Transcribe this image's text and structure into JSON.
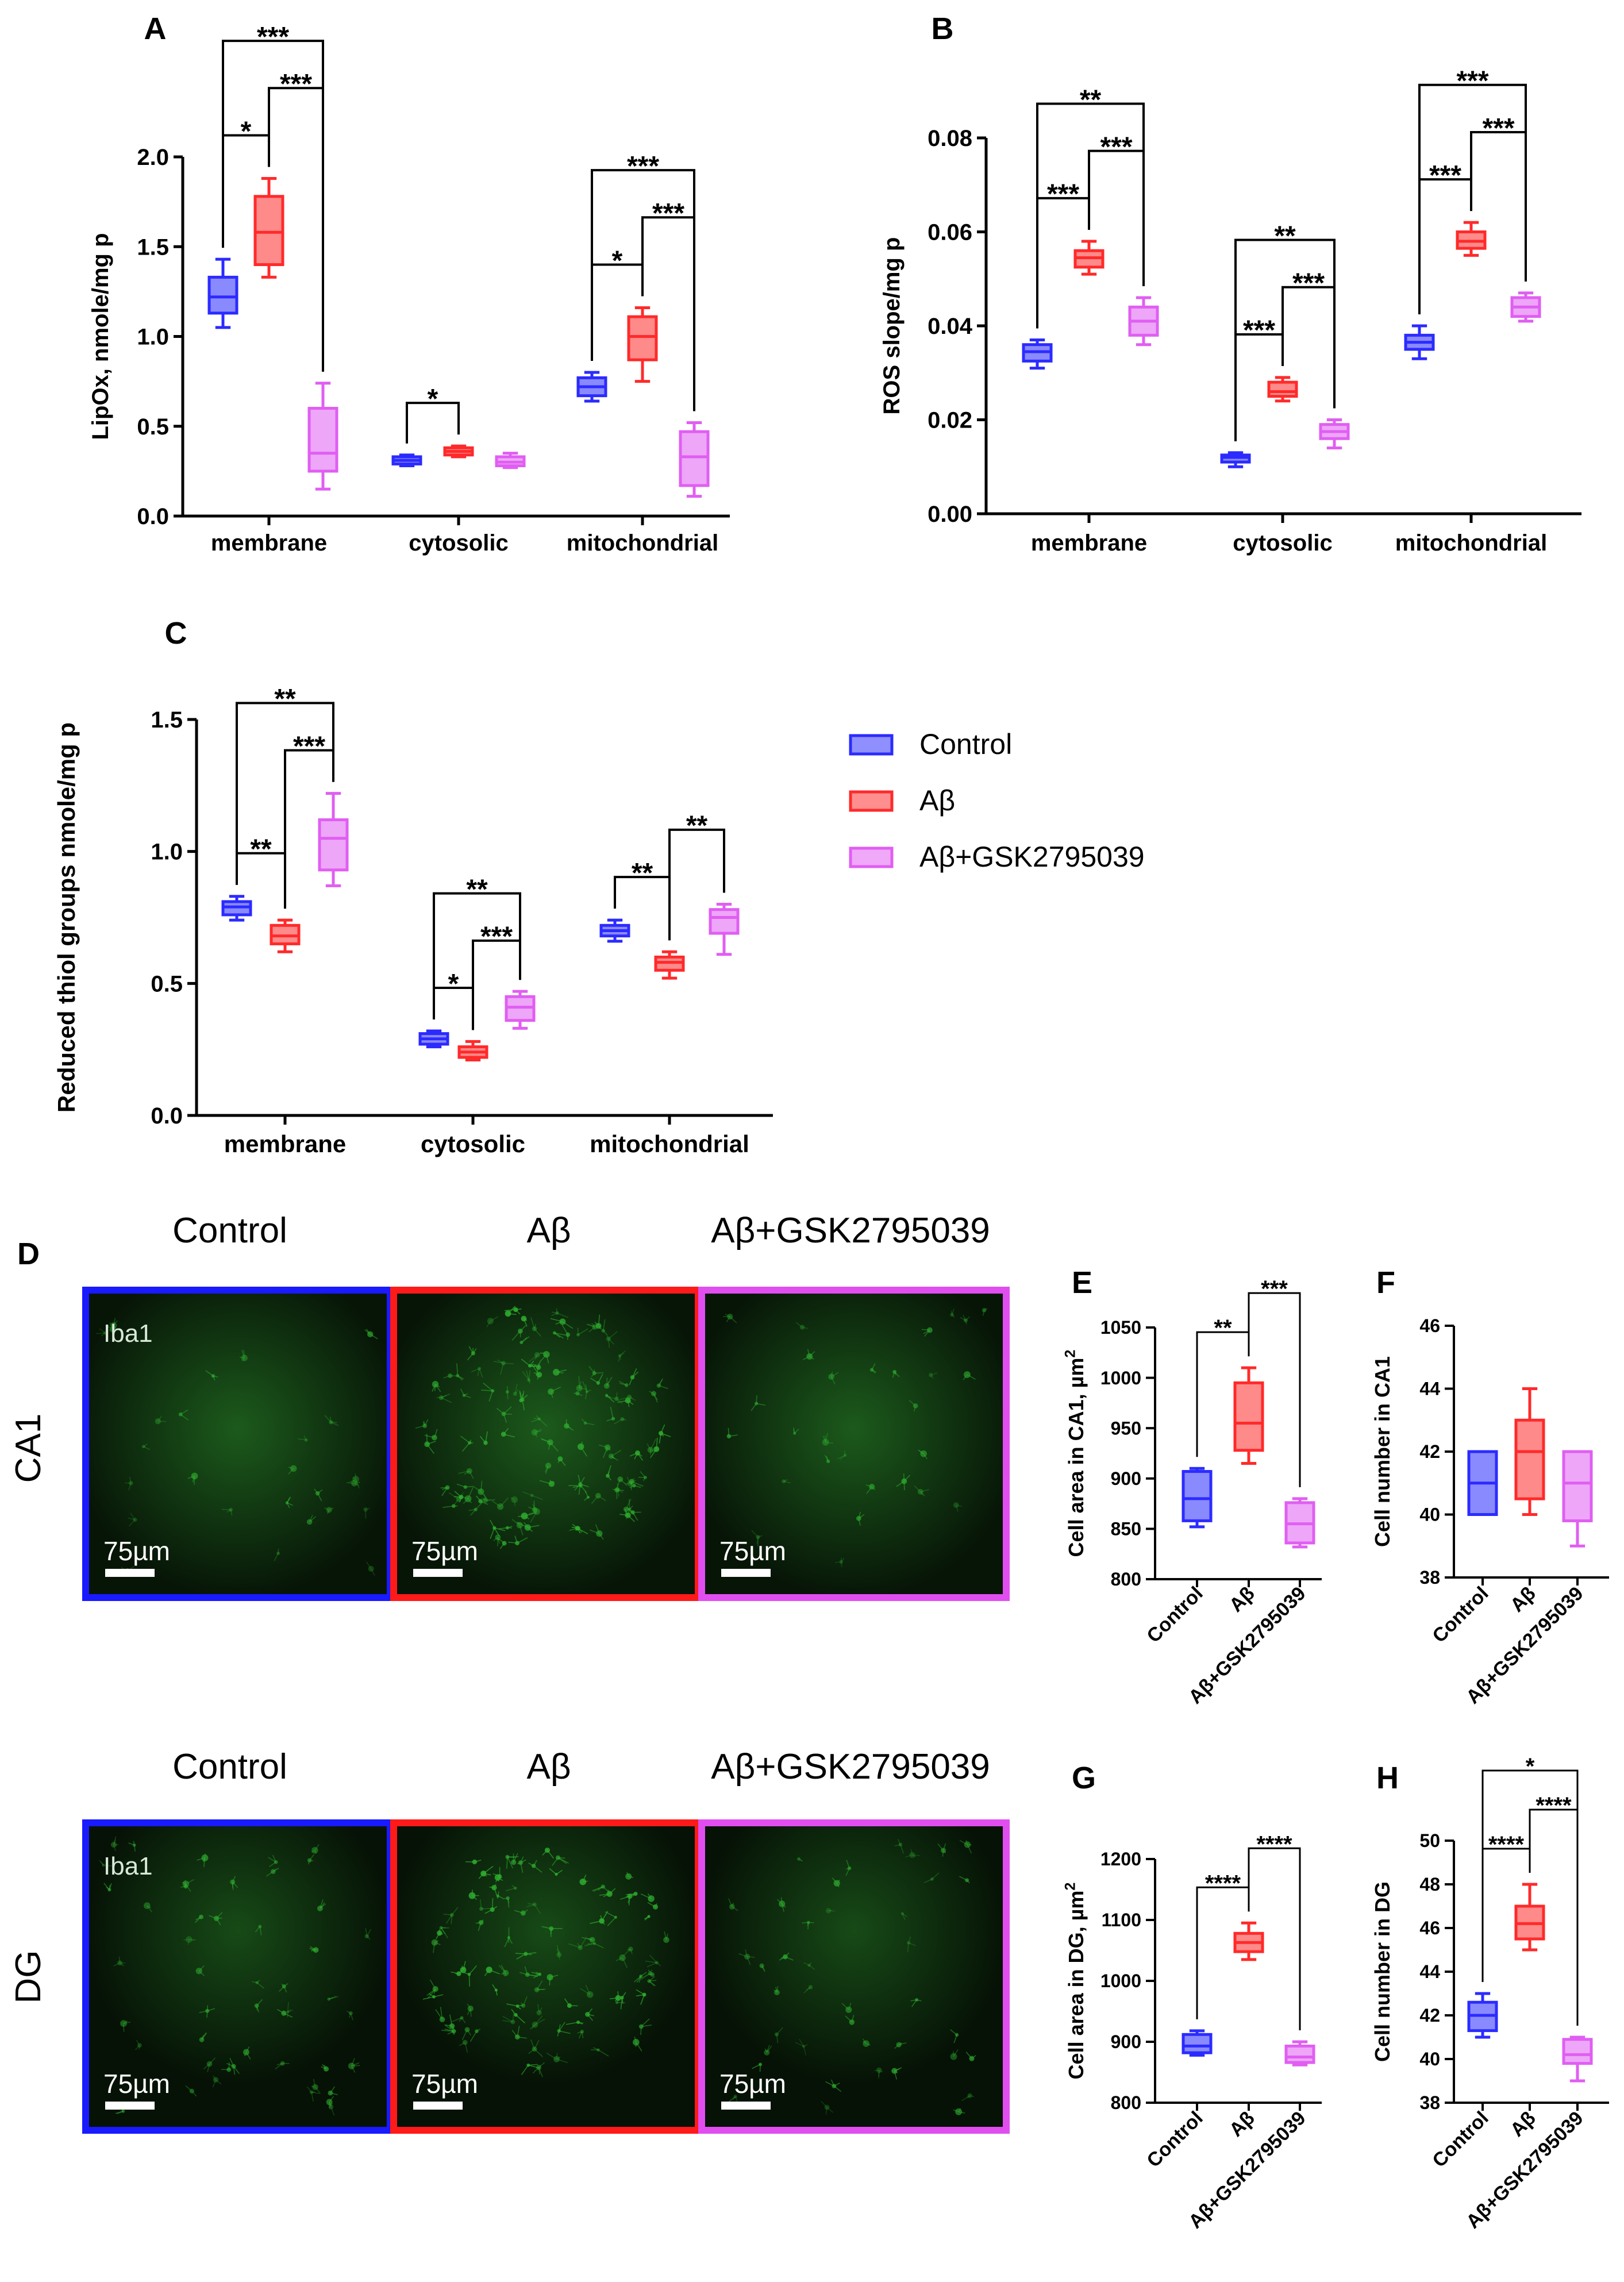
{
  "colors": {
    "control": "#2b2bff",
    "abeta": "#ff2a2a",
    "gsk": "#e05ef2",
    "imgbg": "#050f05",
    "cell": "#2fae2f"
  },
  "legend": {
    "items": [
      "Control",
      "Aβ",
      "Aβ+GSK2795039"
    ]
  },
  "microscopy": {
    "panel_label": "D",
    "col_labels": [
      "Control",
      "Aβ",
      "Aβ+GSK2795039"
    ],
    "row_labels": [
      "CA1",
      "DG"
    ],
    "stain_label": "Iba1",
    "scale_bar": "75µm"
  },
  "chart_data": [
    {
      "id": "A",
      "type": "box",
      "panel_label": "A",
      "ylabel": "LipOx, nmole/mg p",
      "categories": [
        "membrane",
        "cytosolic",
        "mitochondrial"
      ],
      "series_names": [
        "Control",
        "Aβ",
        "Aβ+GSK2795039"
      ],
      "ylim": [
        0,
        2.0
      ],
      "yticks": [
        0.0,
        0.5,
        1.0,
        1.5,
        2.0
      ],
      "ytick_labels": [
        "0.0",
        "0.5",
        "1.0",
        "1.5",
        "2.0"
      ],
      "boxes": [
        [
          [
            1.05,
            1.13,
            1.22,
            1.33,
            1.43
          ],
          [
            1.33,
            1.4,
            1.58,
            1.78,
            1.88
          ],
          [
            0.15,
            0.25,
            0.35,
            0.6,
            0.74
          ]
        ],
        [
          [
            0.28,
            0.29,
            0.31,
            0.33,
            0.34
          ],
          [
            0.33,
            0.34,
            0.36,
            0.38,
            0.39
          ],
          [
            0.27,
            0.28,
            0.3,
            0.33,
            0.35
          ]
        ],
        [
          [
            0.64,
            0.67,
            0.72,
            0.77,
            0.8
          ],
          [
            0.75,
            0.87,
            1.0,
            1.11,
            1.16
          ],
          [
            0.11,
            0.17,
            0.33,
            0.47,
            0.52
          ]
        ]
      ],
      "brackets": [
        {
          "group": 0,
          "from": 0,
          "to": 1,
          "label": "*"
        },
        {
          "group": 0,
          "from": 1,
          "to": 2,
          "label": "***"
        },
        {
          "group": 0,
          "from": 0,
          "to": 2,
          "label": "***"
        },
        {
          "group": 1,
          "from": 0,
          "to": 1,
          "label": "*"
        },
        {
          "group": 2,
          "from": 0,
          "to": 1,
          "label": "*"
        },
        {
          "group": 2,
          "from": 1,
          "to": 2,
          "label": "***"
        },
        {
          "group": 2,
          "from": 0,
          "to": 2,
          "label": "***"
        }
      ]
    },
    {
      "id": "B",
      "type": "box",
      "panel_label": "B",
      "ylabel": "ROS slope/mg p",
      "categories": [
        "membrane",
        "cytosolic",
        "mitochondrial"
      ],
      "series_names": [
        "Control",
        "Aβ",
        "Aβ+GSK2795039"
      ],
      "ylim": [
        0,
        0.08
      ],
      "yticks": [
        0,
        0.02,
        0.04,
        0.06,
        0.08
      ],
      "ytick_labels": [
        "0.00",
        "0.02",
        "0.04",
        "0.06",
        "0.08"
      ],
      "boxes": [
        [
          [
            0.031,
            0.0325,
            0.0345,
            0.036,
            0.037
          ],
          [
            0.051,
            0.0525,
            0.0545,
            0.056,
            0.058
          ],
          [
            0.036,
            0.038,
            0.041,
            0.044,
            0.046
          ]
        ],
        [
          [
            0.01,
            0.011,
            0.012,
            0.0125,
            0.013
          ],
          [
            0.024,
            0.025,
            0.026,
            0.028,
            0.029
          ],
          [
            0.014,
            0.016,
            0.0175,
            0.019,
            0.02
          ]
        ],
        [
          [
            0.033,
            0.035,
            0.0365,
            0.038,
            0.04
          ],
          [
            0.055,
            0.0565,
            0.058,
            0.06,
            0.062
          ],
          [
            0.041,
            0.042,
            0.044,
            0.046,
            0.047
          ]
        ]
      ],
      "brackets": [
        {
          "group": 0,
          "from": 0,
          "to": 1,
          "label": "***"
        },
        {
          "group": 0,
          "from": 1,
          "to": 2,
          "label": "***"
        },
        {
          "group": 0,
          "from": 0,
          "to": 2,
          "label": "**"
        },
        {
          "group": 1,
          "from": 0,
          "to": 1,
          "label": "***"
        },
        {
          "group": 1,
          "from": 1,
          "to": 2,
          "label": "***"
        },
        {
          "group": 1,
          "from": 0,
          "to": 2,
          "label": "**"
        },
        {
          "group": 2,
          "from": 0,
          "to": 1,
          "label": "***"
        },
        {
          "group": 2,
          "from": 1,
          "to": 2,
          "label": "***"
        },
        {
          "group": 2,
          "from": 0,
          "to": 2,
          "label": "***"
        }
      ]
    },
    {
      "id": "C",
      "type": "box",
      "panel_label": "C",
      "ylabel": "Reduced thiol groups nmole/mg p",
      "categories": [
        "membrane",
        "cytosolic",
        "mitochondrial"
      ],
      "series_names": [
        "Control",
        "Aβ",
        "Aβ+GSK2795039"
      ],
      "ylim": [
        0,
        1.5
      ],
      "yticks": [
        0.0,
        0.5,
        1.0,
        1.5
      ],
      "ytick_labels": [
        "0.0",
        "0.5",
        "1.0",
        "1.5"
      ],
      "boxes": [
        [
          [
            0.74,
            0.76,
            0.79,
            0.81,
            0.83
          ],
          [
            0.62,
            0.65,
            0.68,
            0.72,
            0.74
          ],
          [
            0.87,
            0.93,
            1.05,
            1.12,
            1.22
          ]
        ],
        [
          [
            0.26,
            0.27,
            0.29,
            0.31,
            0.32
          ],
          [
            0.21,
            0.22,
            0.24,
            0.26,
            0.28
          ],
          [
            0.33,
            0.36,
            0.41,
            0.45,
            0.47
          ]
        ],
        [
          [
            0.66,
            0.68,
            0.7,
            0.72,
            0.74
          ],
          [
            0.52,
            0.55,
            0.58,
            0.6,
            0.62
          ],
          [
            0.61,
            0.69,
            0.75,
            0.78,
            0.8
          ]
        ]
      ],
      "brackets": [
        {
          "group": 0,
          "from": 0,
          "to": 1,
          "label": "**"
        },
        {
          "group": 0,
          "from": 1,
          "to": 2,
          "label": "***"
        },
        {
          "group": 0,
          "from": 0,
          "to": 2,
          "label": "**"
        },
        {
          "group": 1,
          "from": 0,
          "to": 1,
          "label": "*"
        },
        {
          "group": 1,
          "from": 1,
          "to": 2,
          "label": "***"
        },
        {
          "group": 1,
          "from": 0,
          "to": 2,
          "label": "**"
        },
        {
          "group": 2,
          "from": 0,
          "to": 1,
          "label": "**"
        },
        {
          "group": 2,
          "from": 1,
          "to": 2,
          "label": "**"
        }
      ]
    },
    {
      "id": "E",
      "type": "box",
      "panel_label": "E",
      "ylabel": "Cell area in CA1, µm",
      "ylabel_sup": "2",
      "categories": [
        "Control",
        "Aβ",
        "Aβ+GSK2795039"
      ],
      "ylim": [
        800,
        1050
      ],
      "yticks": [
        800,
        850,
        900,
        950,
        1000,
        1050
      ],
      "ytick_labels": [
        "800",
        "850",
        "900",
        "950",
        "1000",
        "1050"
      ],
      "boxes": [
        [
          852,
          858,
          880,
          907,
          910
        ],
        [
          915,
          928,
          955,
          995,
          1010
        ],
        [
          832,
          836,
          855,
          876,
          880
        ]
      ],
      "brackets": [
        {
          "from": 0,
          "to": 1,
          "label": "**"
        },
        {
          "from": 1,
          "to": 2,
          "label": "***"
        }
      ]
    },
    {
      "id": "F",
      "type": "box",
      "panel_label": "F",
      "ylabel": "Cell number in CA1",
      "categories": [
        "Control",
        "Aβ",
        "Aβ+GSK2795039"
      ],
      "ylim": [
        38,
        46
      ],
      "yticks": [
        38,
        40,
        42,
        44,
        46
      ],
      "ytick_labels": [
        "38",
        "40",
        "42",
        "44",
        "46"
      ],
      "boxes": [
        [
          40,
          40,
          41,
          42,
          42
        ],
        [
          40,
          40.5,
          42,
          43,
          44
        ],
        [
          39,
          39.8,
          41,
          42,
          42
        ]
      ],
      "brackets": []
    },
    {
      "id": "G",
      "type": "box",
      "panel_label": "G",
      "ylabel": "Cell area in DG, µm",
      "ylabel_sup": "2",
      "categories": [
        "Control",
        "Aβ",
        "Aβ+GSK2795039"
      ],
      "ylim": [
        800,
        1200
      ],
      "yticks": [
        800,
        900,
        1000,
        1100,
        1200
      ],
      "ytick_labels": [
        "800",
        "900",
        "1000",
        "1100",
        "1200"
      ],
      "boxes": [
        [
          878,
          882,
          893,
          912,
          918
        ],
        [
          1035,
          1048,
          1063,
          1078,
          1095
        ],
        [
          862,
          866,
          875,
          893,
          900
        ]
      ],
      "brackets": [
        {
          "from": 0,
          "to": 1,
          "label": "****"
        },
        {
          "from": 1,
          "to": 2,
          "label": "****"
        }
      ]
    },
    {
      "id": "H",
      "type": "box",
      "panel_label": "H",
      "ylabel": "Cell number in DG",
      "categories": [
        "Control",
        "Aβ",
        "Aβ+GSK2795039"
      ],
      "ylim": [
        38,
        50
      ],
      "yticks": [
        38,
        40,
        42,
        44,
        46,
        48,
        50
      ],
      "ytick_labels": [
        "38",
        "40",
        "42",
        "44",
        "46",
        "48",
        "50"
      ],
      "boxes": [
        [
          41,
          41.3,
          42,
          42.6,
          43
        ],
        [
          45,
          45.5,
          46.2,
          47,
          48
        ],
        [
          39,
          39.8,
          40.2,
          40.9,
          41
        ]
      ],
      "brackets": [
        {
          "from": 0,
          "to": 1,
          "label": "****"
        },
        {
          "from": 1,
          "to": 2,
          "label": "****"
        },
        {
          "from": 0,
          "to": 2,
          "label": "*"
        }
      ]
    }
  ]
}
